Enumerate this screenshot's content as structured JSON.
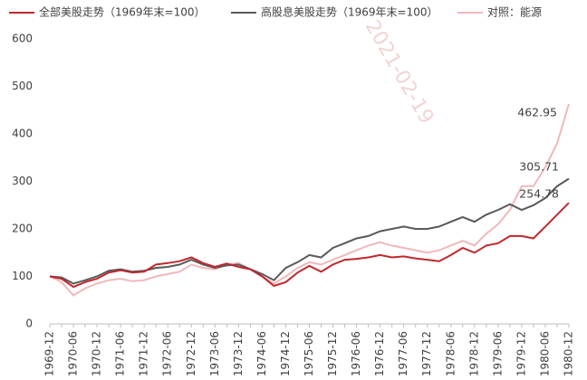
{
  "chart_data": {
    "type": "line",
    "watermark": "2021-02-19",
    "categories": [
      "1969-12",
      null,
      "1970-06",
      null,
      "1970-12",
      null,
      "1971-06",
      null,
      "1971-12",
      null,
      "1972-06",
      null,
      "1972-12",
      null,
      "1973-06",
      null,
      "1973-12",
      null,
      "1974-06",
      null,
      "1974-12",
      null,
      "1975-06",
      null,
      "1975-12",
      null,
      "1976-06",
      null,
      "1976-12",
      null,
      "1977-06",
      null,
      "1977-12",
      null,
      "1978-06",
      null,
      "1978-12",
      null,
      "1979-06",
      null,
      "1979-12",
      null,
      "1980-06",
      null,
      "1980-12"
    ],
    "series": [
      {
        "name": "全部美股走势（1969年末=100）",
        "color": "#c0282d",
        "values": [
          100,
          95,
          78,
          88,
          95,
          108,
          113,
          108,
          110,
          125,
          128,
          132,
          140,
          128,
          120,
          127,
          120,
          115,
          100,
          80,
          88,
          108,
          122,
          110,
          125,
          135,
          137,
          140,
          145,
          140,
          142,
          138,
          135,
          132,
          145,
          160,
          150,
          165,
          170,
          185,
          185,
          180,
          205,
          230,
          254.78
        ]
      },
      {
        "name": "高股息美股走势（1969年末=100）",
        "color": "#595959",
        "values": [
          100,
          98,
          85,
          92,
          100,
          112,
          115,
          110,
          112,
          118,
          120,
          125,
          135,
          125,
          118,
          123,
          125,
          115,
          105,
          92,
          118,
          130,
          145,
          140,
          160,
          170,
          180,
          185,
          195,
          200,
          205,
          200,
          200,
          205,
          215,
          225,
          215,
          230,
          240,
          252,
          240,
          250,
          265,
          290,
          305.71
        ]
      },
      {
        "name": "对照：能源",
        "color": "#f0b8bc",
        "values": [
          100,
          88,
          60,
          75,
          85,
          92,
          95,
          90,
          92,
          100,
          105,
          110,
          125,
          118,
          115,
          125,
          128,
          115,
          100,
          85,
          100,
          118,
          130,
          125,
          135,
          145,
          155,
          165,
          172,
          165,
          160,
          155,
          150,
          155,
          165,
          175,
          165,
          190,
          210,
          240,
          290,
          290,
          330,
          380,
          462.95
        ]
      }
    ],
    "ylim": [
      0,
      600
    ],
    "yticks": [
      0,
      100,
      200,
      300,
      400,
      500,
      600
    ],
    "grid": false,
    "legend": "top"
  }
}
